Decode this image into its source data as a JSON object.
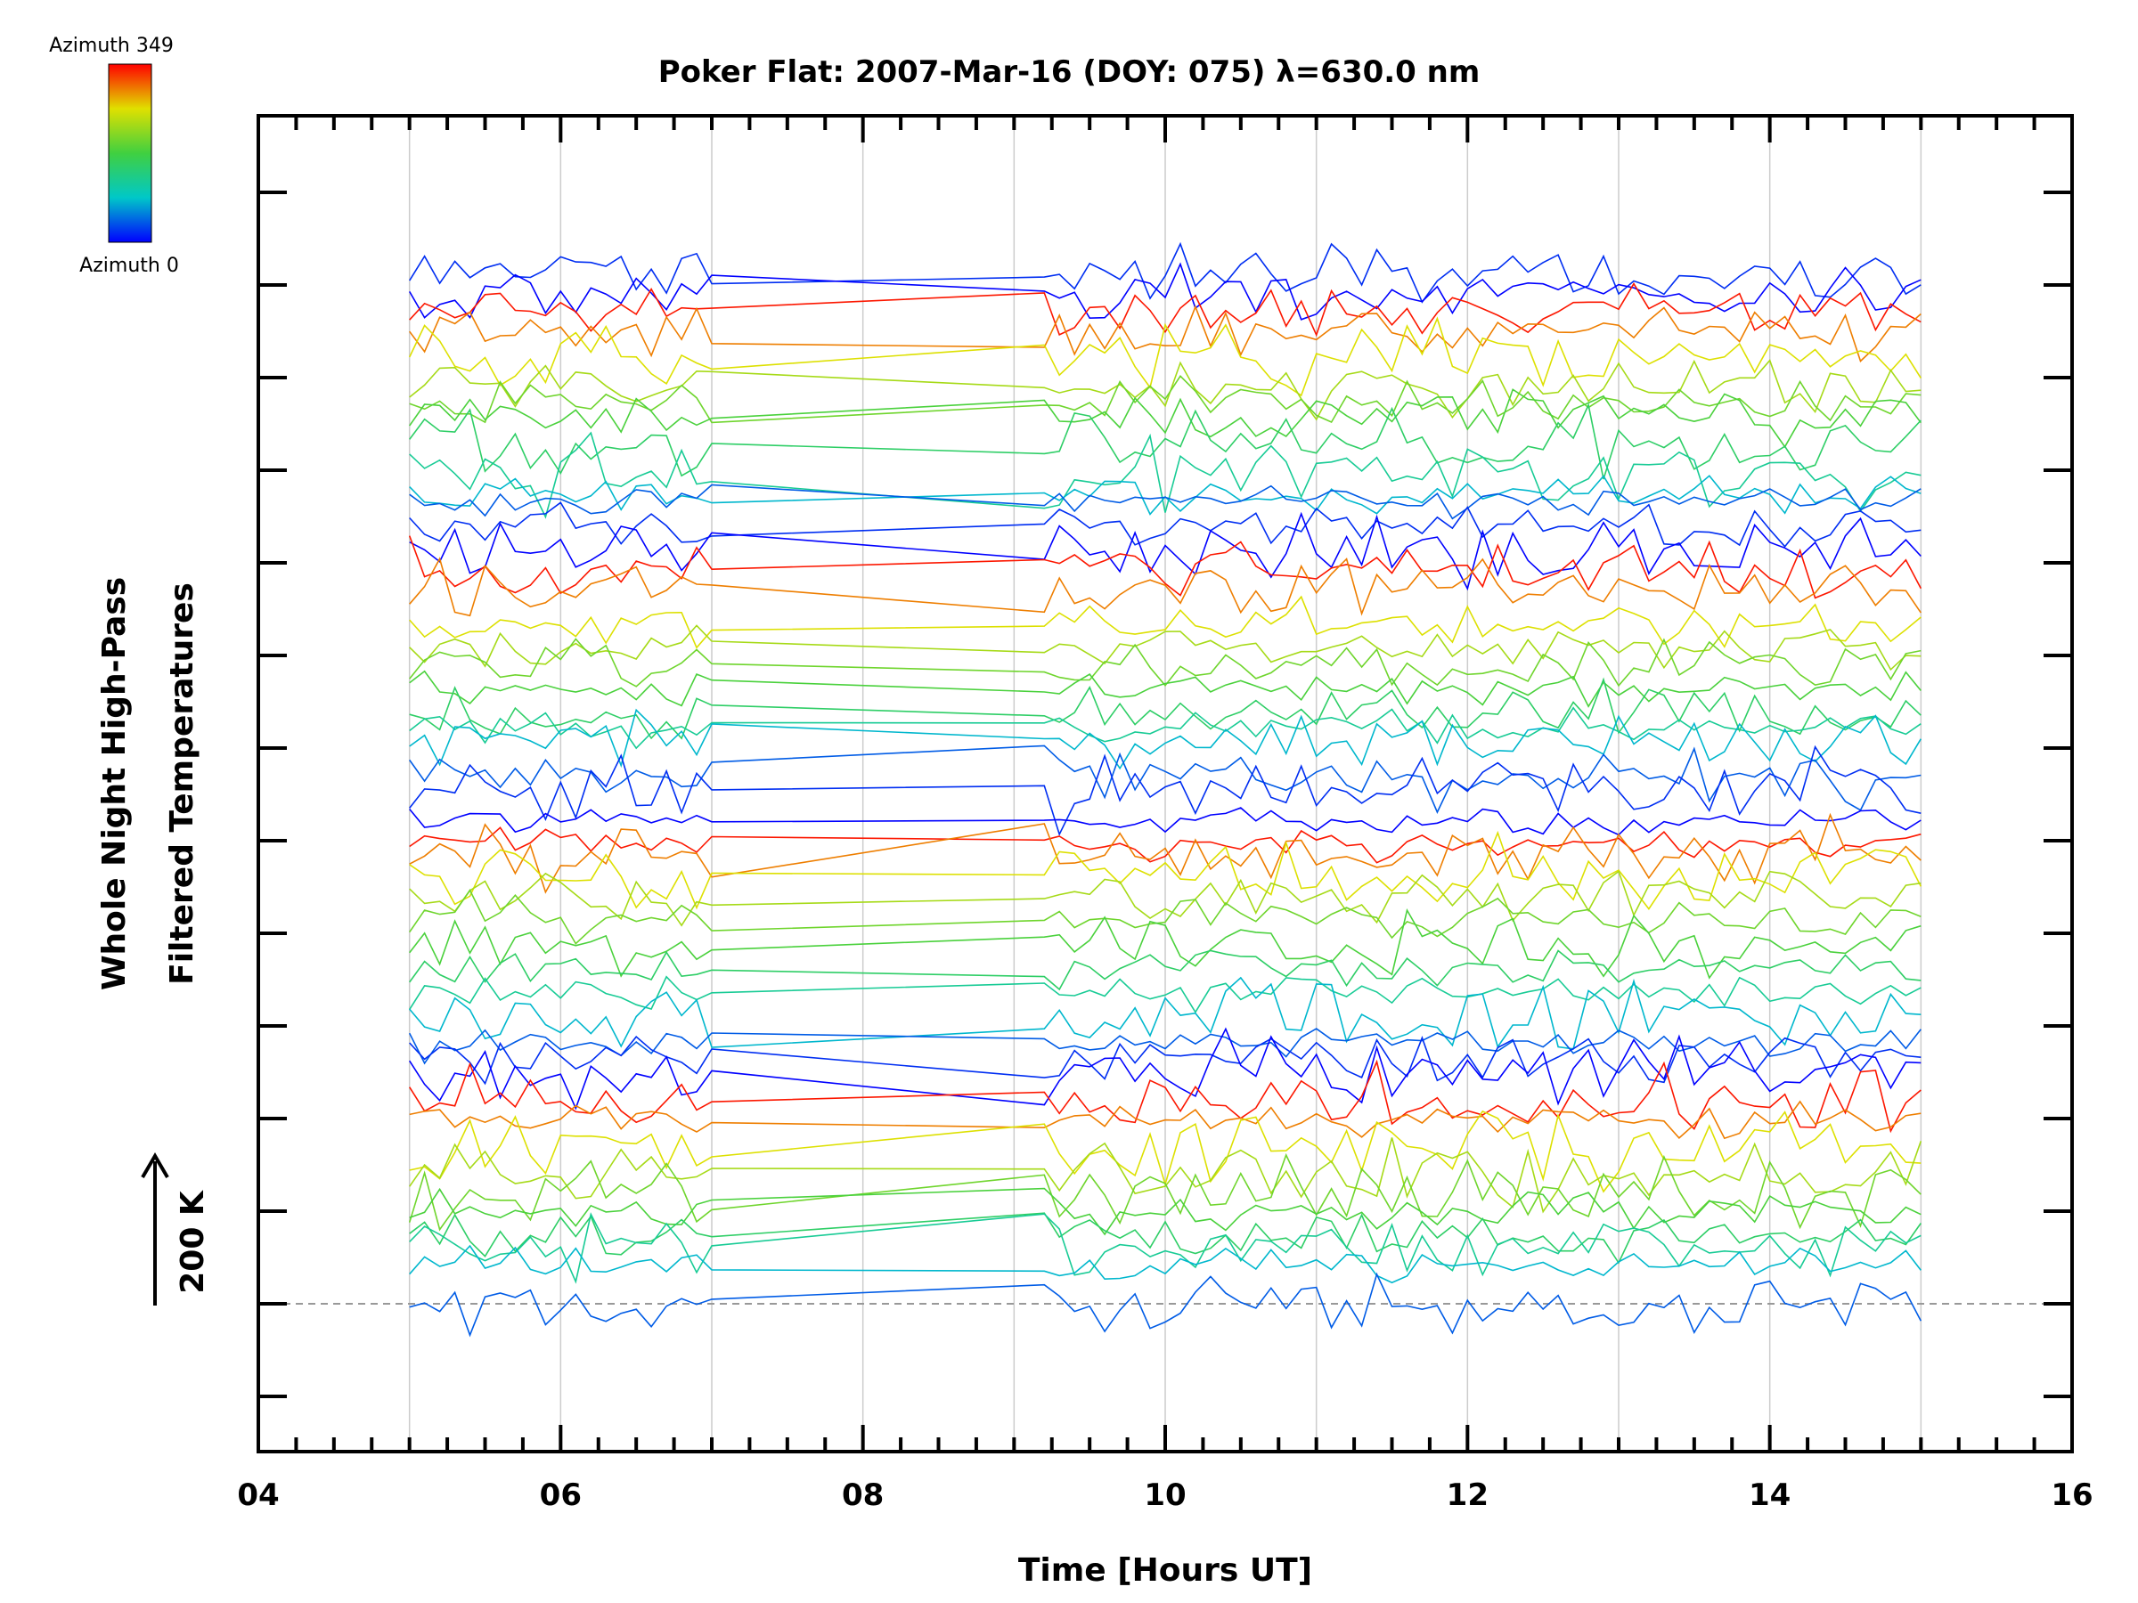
{
  "chart_data": {
    "type": "line",
    "title": "Poker Flat: 2007-Mar-16 (DOY: 075) λ=630.0 nm",
    "xlabel": "Time [Hours UT]",
    "ylabel_line1": "Whole Night High-Pass",
    "ylabel_line2": "Filtered Temperatures",
    "xlim": [
      4,
      16
    ],
    "x_tick_labels": [
      "04",
      "06",
      "08",
      "10",
      "12",
      "14",
      "16"
    ],
    "x_tick_values": [
      4,
      6,
      8,
      10,
      12,
      14,
      16
    ],
    "scale_bar_label": "200 K",
    "colorbar": {
      "top_label": "Azimuth 349",
      "bottom_label": "Azimuth 0"
    },
    "n_series": 48,
    "time_range": [
      5.0,
      15.0
    ],
    "observation_gap": [
      7.0,
      9.2
    ],
    "note": "Each series is an offset-stacked high-pass filtered temperature trace colored by azimuth; values are estimated offsets (baseline levels in plot units)."
  },
  "colors": {
    "background": "#ffffff",
    "axis": "#000000",
    "grid": "#cccccc",
    "baseline": "#999999"
  }
}
